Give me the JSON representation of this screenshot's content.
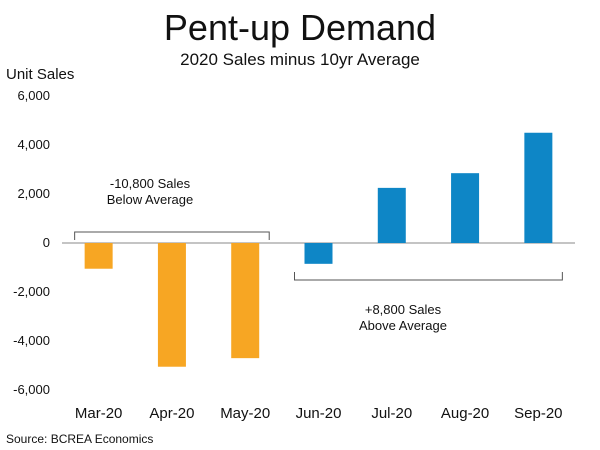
{
  "chart_data": {
    "type": "bar",
    "title": "Pent-up Demand",
    "subtitle": "2020 Sales minus 10yr Average",
    "ylabel": "Unit Sales",
    "xlabel": "",
    "categories": [
      "Mar-20",
      "Apr-20",
      "May-20",
      "Jun-20",
      "Jul-20",
      "Aug-20",
      "Sep-20"
    ],
    "values": [
      -1050,
      -5050,
      -4700,
      -850,
      2250,
      2850,
      4500
    ],
    "bar_colors": [
      "#f7a623",
      "#f7a623",
      "#f7a623",
      "#0e86c6",
      "#0e86c6",
      "#0e86c6",
      "#0e86c6"
    ],
    "ylim": [
      -6000,
      6000
    ],
    "yticks": [
      6000,
      4000,
      2000,
      0,
      -2000,
      -4000,
      -6000
    ],
    "ytick_labels": [
      "6,000",
      "4,000",
      "2,000",
      "0",
      "-2,000",
      "-4,000",
      "-6,000"
    ],
    "grid": false,
    "annotations": [
      {
        "lines": [
          "-10,800 Sales",
          "Below Average"
        ],
        "span": [
          "Mar-20",
          "May-20"
        ],
        "bracket": "above-zero"
      },
      {
        "lines": [
          "+8,800  Sales",
          "Above Average"
        ],
        "span": [
          "Jun-20",
          "Sep-20"
        ],
        "bracket": "below-zero"
      }
    ]
  },
  "source": "Source: BCREA Economics",
  "colors": {
    "below": "#f7a623",
    "above": "#0e86c6",
    "axis": "#888888"
  }
}
